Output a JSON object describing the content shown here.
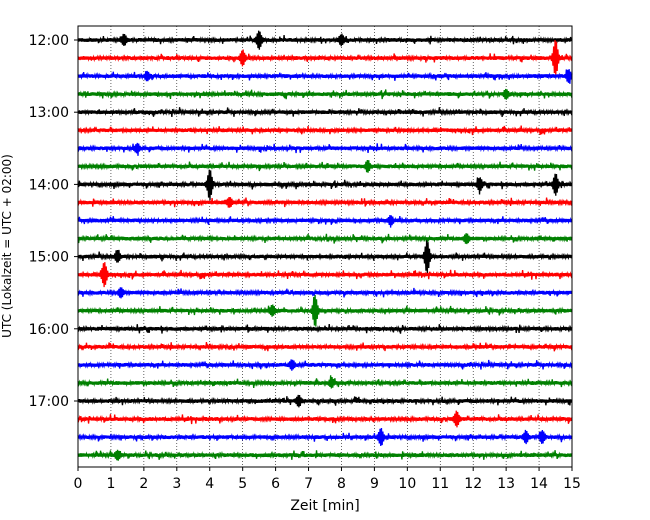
{
  "chart_data": {
    "type": "line",
    "xlabel": "Zeit  [min]",
    "ylabel": "UTC (Lokalzeit = UTC + 02:00)",
    "xlim": [
      0,
      15
    ],
    "x_ticks": [
      "0",
      "1",
      "2",
      "3",
      "4",
      "5",
      "6",
      "7",
      "8",
      "9",
      "10",
      "11",
      "12",
      "13",
      "14",
      "15"
    ],
    "y_tick_labels": [
      "12:00",
      "13:00",
      "14:00",
      "15:00",
      "16:00",
      "17:00"
    ],
    "y_tick_rows": [
      0,
      4,
      8,
      12,
      16,
      20
    ],
    "grid": "vertical dotted",
    "color_cycle": [
      "#000000",
      "#ff0000",
      "#0000ff",
      "#008000"
    ],
    "row_interval_minutes": 15,
    "rows": 24,
    "start_time": "12:00",
    "events": [
      {
        "row": 0,
        "t": 1.4,
        "amp": 0.35
      },
      {
        "row": 0,
        "t": 5.5,
        "amp": 0.6
      },
      {
        "row": 0,
        "t": 8.0,
        "amp": 0.35
      },
      {
        "row": 1,
        "t": 5.0,
        "amp": 0.5
      },
      {
        "row": 1,
        "t": 14.5,
        "amp": 1.2
      },
      {
        "row": 2,
        "t": 2.1,
        "amp": 0.3
      },
      {
        "row": 2,
        "t": 14.9,
        "amp": 0.4
      },
      {
        "row": 3,
        "t": 13.0,
        "amp": 0.3
      },
      {
        "row": 6,
        "t": 1.8,
        "amp": 0.3
      },
      {
        "row": 7,
        "t": 8.8,
        "amp": 0.35
      },
      {
        "row": 8,
        "t": 4.0,
        "amp": 1.0
      },
      {
        "row": 8,
        "t": 14.5,
        "amp": 0.7
      },
      {
        "row": 8,
        "t": 12.2,
        "amp": 0.4
      },
      {
        "row": 9,
        "t": 4.6,
        "amp": 0.3
      },
      {
        "row": 10,
        "t": 9.5,
        "amp": 0.3
      },
      {
        "row": 11,
        "t": 11.8,
        "amp": 0.3
      },
      {
        "row": 12,
        "t": 10.6,
        "amp": 1.1
      },
      {
        "row": 12,
        "t": 1.2,
        "amp": 0.35
      },
      {
        "row": 13,
        "t": 0.8,
        "amp": 0.8
      },
      {
        "row": 14,
        "t": 1.3,
        "amp": 0.3
      },
      {
        "row": 15,
        "t": 7.2,
        "amp": 1.0
      },
      {
        "row": 15,
        "t": 5.9,
        "amp": 0.35
      },
      {
        "row": 18,
        "t": 6.5,
        "amp": 0.3
      },
      {
        "row": 19,
        "t": 7.7,
        "amp": 0.3
      },
      {
        "row": 20,
        "t": 6.7,
        "amp": 0.35
      },
      {
        "row": 21,
        "t": 11.5,
        "amp": 0.5
      },
      {
        "row": 22,
        "t": 9.2,
        "amp": 0.55
      },
      {
        "row": 22,
        "t": 13.6,
        "amp": 0.4
      },
      {
        "row": 22,
        "t": 14.1,
        "amp": 0.4
      },
      {
        "row": 23,
        "t": 1.2,
        "amp": 0.3
      }
    ]
  }
}
